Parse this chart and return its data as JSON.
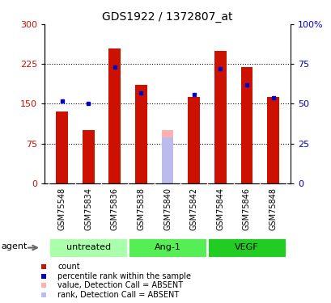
{
  "title": "GDS1922 / 1372807_at",
  "samples": [
    "GSM75548",
    "GSM75834",
    "GSM75836",
    "GSM75838",
    "GSM75840",
    "GSM75842",
    "GSM75844",
    "GSM75846",
    "GSM75848"
  ],
  "count_values": [
    135,
    100,
    255,
    185,
    null,
    163,
    250,
    220,
    163
  ],
  "rank_values": [
    52,
    50,
    73,
    57,
    null,
    56,
    72,
    62,
    54
  ],
  "absent_count": [
    null,
    null,
    null,
    null,
    100,
    null,
    null,
    null,
    null
  ],
  "absent_rank": [
    null,
    null,
    null,
    null,
    29,
    null,
    null,
    null,
    null
  ],
  "groups": [
    {
      "label": "untreated",
      "start": 0,
      "end": 2,
      "color": "#AAFFAA"
    },
    {
      "label": "Ang-1",
      "start": 3,
      "end": 5,
      "color": "#44EE44"
    },
    {
      "label": "VEGF",
      "start": 6,
      "end": 8,
      "color": "#22DD22"
    }
  ],
  "ylim_left": [
    0,
    300
  ],
  "ylim_right": [
    0,
    100
  ],
  "yticks_left": [
    0,
    75,
    150,
    225,
    300
  ],
  "yticks_right": [
    0,
    25,
    50,
    75,
    100
  ],
  "color_red": "#CC1100",
  "color_blue": "#0000CC",
  "color_pink": "#FFB0B0",
  "color_lightblue": "#BBBBEE",
  "color_xtick_bg": "#C8C8C8",
  "color_group_border": "#FFFFFF",
  "bar_width": 0.45,
  "agent_label": "agent",
  "legend_items": [
    {
      "color": "#CC1100",
      "label": "count"
    },
    {
      "color": "#0000CC",
      "label": "percentile rank within the sample"
    },
    {
      "color": "#FFB0B0",
      "label": "value, Detection Call = ABSENT"
    },
    {
      "color": "#BBBBEE",
      "label": "rank, Detection Call = ABSENT"
    }
  ]
}
